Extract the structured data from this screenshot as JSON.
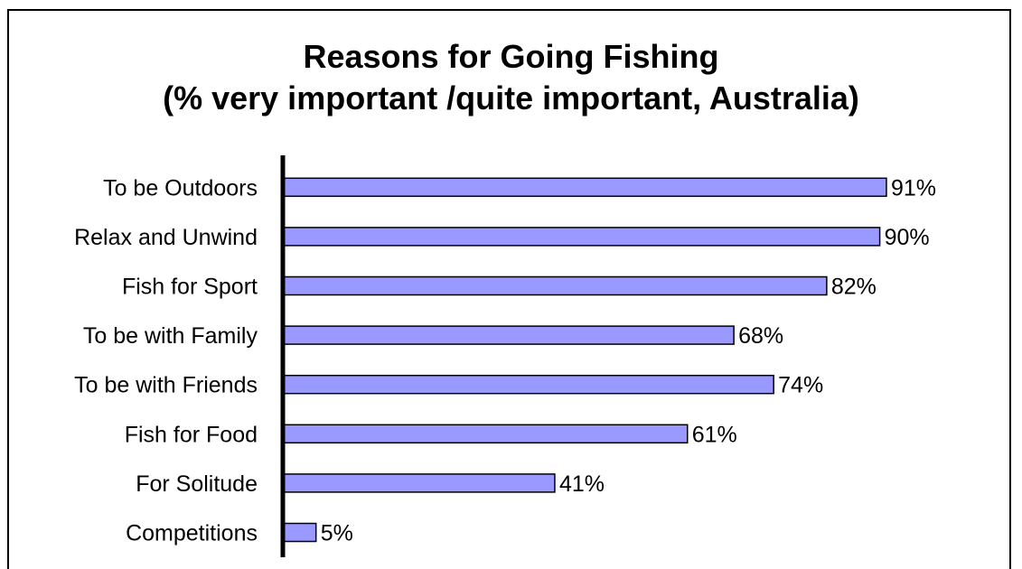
{
  "chart_data": {
    "type": "bar",
    "orientation": "horizontal",
    "title": "Reasons for Going Fishing",
    "subtitle": "(% very important /quite important, Australia)",
    "categories": [
      "To be Outdoors",
      "Relax and Unwind",
      "Fish for Sport",
      "To be with Family",
      "To be with Friends",
      "Fish for Food",
      "For Solitude",
      "Competitions"
    ],
    "values": [
      91,
      90,
      82,
      68,
      74,
      61,
      41,
      5
    ],
    "value_labels": [
      "91%",
      "90%",
      "82%",
      "68%",
      "74%",
      "61%",
      "41%",
      "5%"
    ],
    "xlim": [
      0,
      100
    ],
    "grid": false,
    "legend": "none",
    "colors": {
      "bar_fill": "#9999ff",
      "bar_stroke": "#000000",
      "axis": "#000000"
    }
  }
}
